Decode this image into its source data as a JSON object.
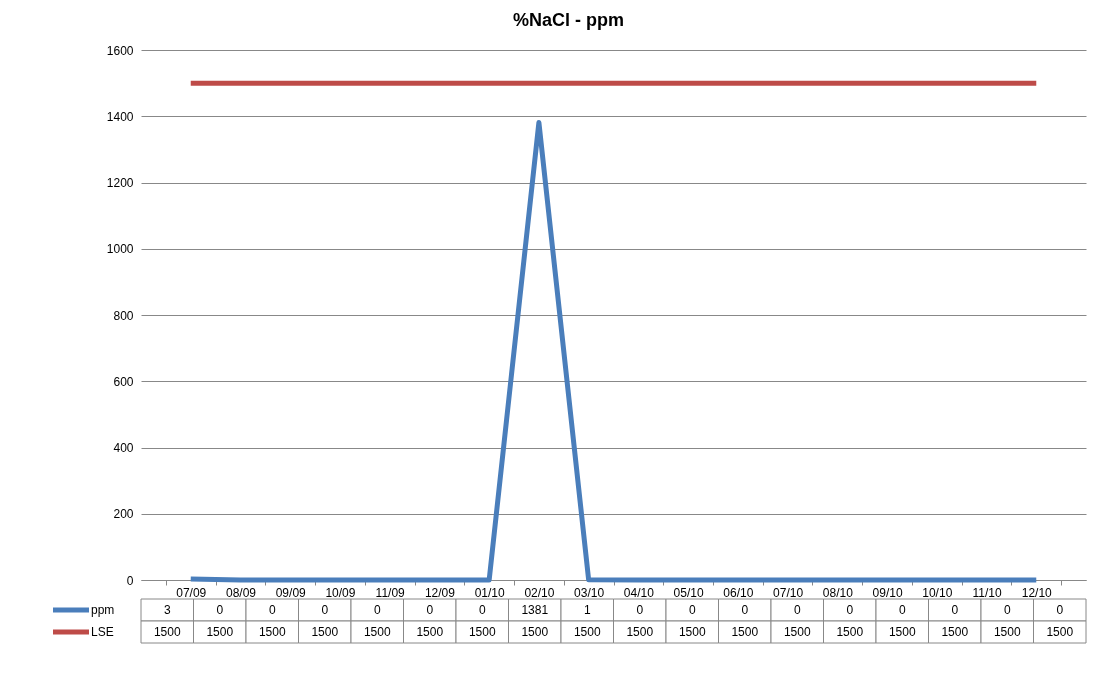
{
  "chart_data": {
    "type": "line",
    "title": "%NaCl - ppm",
    "categories": [
      "07/09",
      "08/09",
      "09/09",
      "10/09",
      "11/09",
      "12/09",
      "01/10",
      "02/10",
      "03/10",
      "04/10",
      "05/10",
      "06/10",
      "07/10",
      "08/10",
      "09/10",
      "10/10",
      "11/10",
      "12/10"
    ],
    "series": [
      {
        "name": "ppm",
        "color": "#4a7ebb",
        "values": [
          3,
          0,
          0,
          0,
          0,
          0,
          0,
          1381,
          1,
          0,
          0,
          0,
          0,
          0,
          0,
          0,
          0,
          0
        ]
      },
      {
        "name": "LSE",
        "color": "#be4b48",
        "values": [
          1500,
          1500,
          1500,
          1500,
          1500,
          1500,
          1500,
          1500,
          1500,
          1500,
          1500,
          1500,
          1500,
          1500,
          1500,
          1500,
          1500,
          1500
        ]
      }
    ],
    "ylim": [
      0,
      1600
    ],
    "yticks": [
      0,
      200,
      400,
      600,
      800,
      1000,
      1200,
      1400,
      1600
    ],
    "grid": "y",
    "legend": "bottom",
    "data_labels": true
  }
}
